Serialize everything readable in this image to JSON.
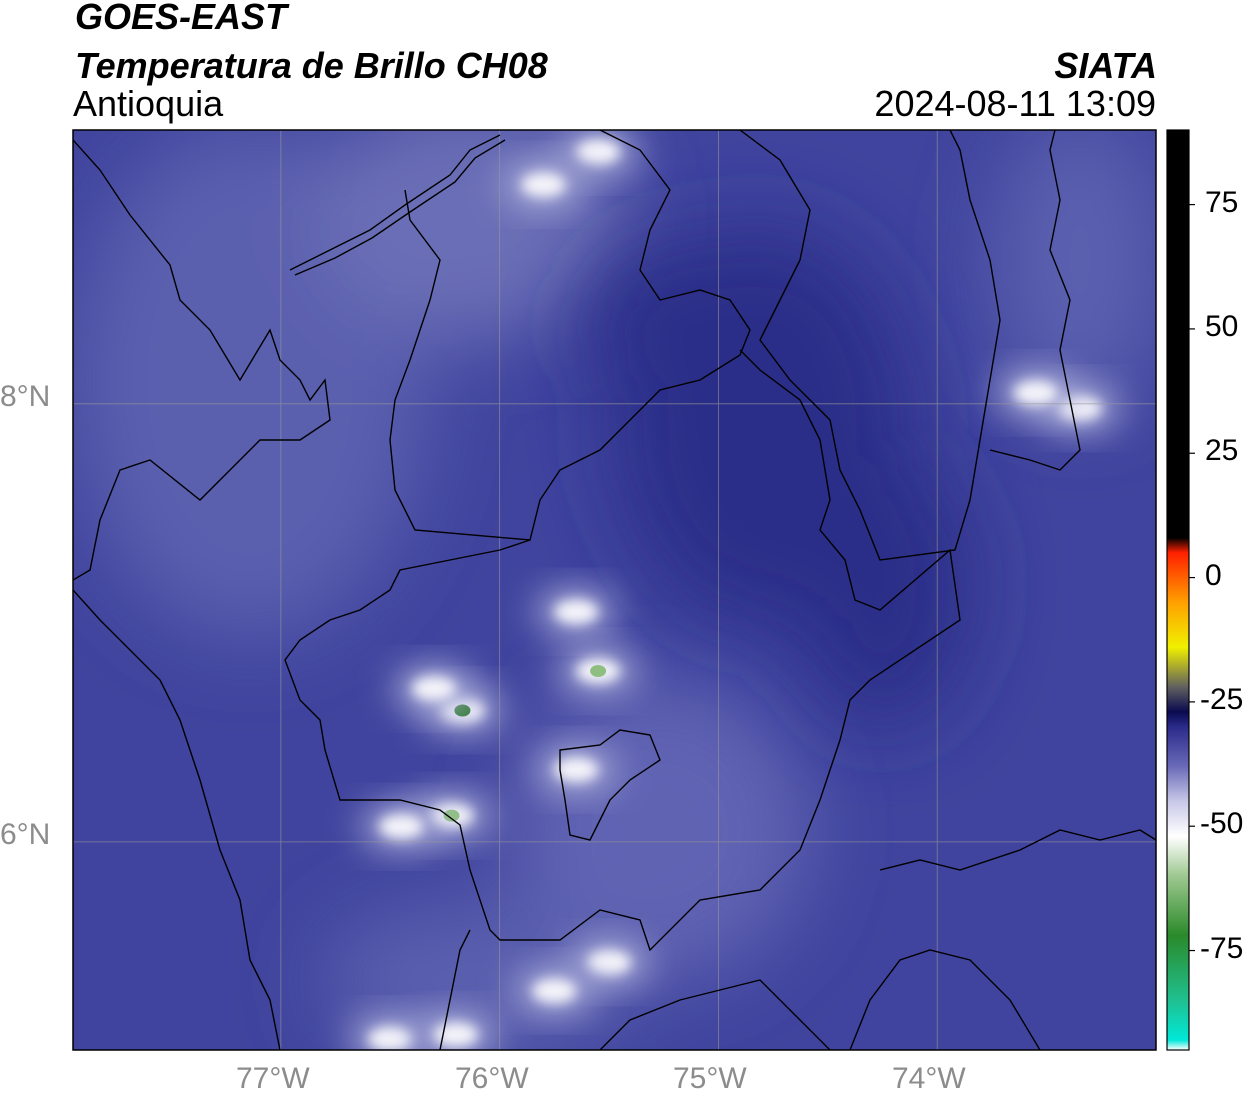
{
  "header": {
    "satellite": "GOES-EAST",
    "product": "Temperatura de Brillo CH08",
    "region": "Antioquia",
    "agency": "SIATA",
    "timestamp": "2024-08-11 13:09"
  },
  "map": {
    "lat_ticks": [
      "8°N",
      "6°N"
    ],
    "lon_ticks": [
      "77°W",
      "76°W",
      "75°W",
      "74°W"
    ],
    "extent": {
      "lon_min": -77.95,
      "lon_max": -73.0,
      "lat_min": 5.05,
      "lat_max": 9.25
    },
    "base_color": "#40449e",
    "cold_clouds": [
      {
        "lon": -75.65,
        "lat": 7.05
      },
      {
        "lon": -75.55,
        "lat": 6.78
      },
      {
        "lon": -76.17,
        "lat": 6.6
      },
      {
        "lon": -76.3,
        "lat": 6.7
      },
      {
        "lon": -76.22,
        "lat": 6.12
      },
      {
        "lon": -76.45,
        "lat": 6.07
      },
      {
        "lon": -75.65,
        "lat": 6.33
      },
      {
        "lon": -73.35,
        "lat": 7.98
      },
      {
        "lon": -73.55,
        "lat": 8.05
      },
      {
        "lon": -75.5,
        "lat": 5.45
      },
      {
        "lon": -75.75,
        "lat": 5.32
      },
      {
        "lon": -76.5,
        "lat": 5.1
      },
      {
        "lon": -76.2,
        "lat": 5.12
      },
      {
        "lon": -75.55,
        "lat": 9.15
      },
      {
        "lon": -75.8,
        "lat": 9.0
      }
    ],
    "warm_region": {
      "lon": -74.8,
      "lat": 7.9
    }
  },
  "colorbar": {
    "ticks": [
      "75",
      "50",
      "25",
      "0",
      "-25",
      "-50",
      "-75"
    ],
    "tick_values": [
      75,
      50,
      25,
      0,
      -25,
      -50,
      -75
    ],
    "vmin": -95,
    "vmax": 90,
    "stops": [
      {
        "value": -95,
        "color": "#ffffff"
      },
      {
        "value": -93,
        "color": "#00e8d8"
      },
      {
        "value": -85,
        "color": "#20c090"
      },
      {
        "value": -72,
        "color": "#2a8a2a"
      },
      {
        "value": -60,
        "color": "#9ec890"
      },
      {
        "value": -52,
        "color": "#ffffff"
      },
      {
        "value": -45,
        "color": "#c8c8e8"
      },
      {
        "value": -38,
        "color": "#6a6ab8"
      },
      {
        "value": -30,
        "color": "#2a2a8a"
      },
      {
        "value": -27,
        "color": "#0a0a50"
      },
      {
        "value": -22,
        "color": "#606060"
      },
      {
        "value": -14,
        "color": "#f0f000"
      },
      {
        "value": -5,
        "color": "#ffa000"
      },
      {
        "value": 5,
        "color": "#ff2000"
      },
      {
        "value": 8,
        "color": "#000000"
      },
      {
        "value": 90,
        "color": "#000000"
      }
    ]
  }
}
